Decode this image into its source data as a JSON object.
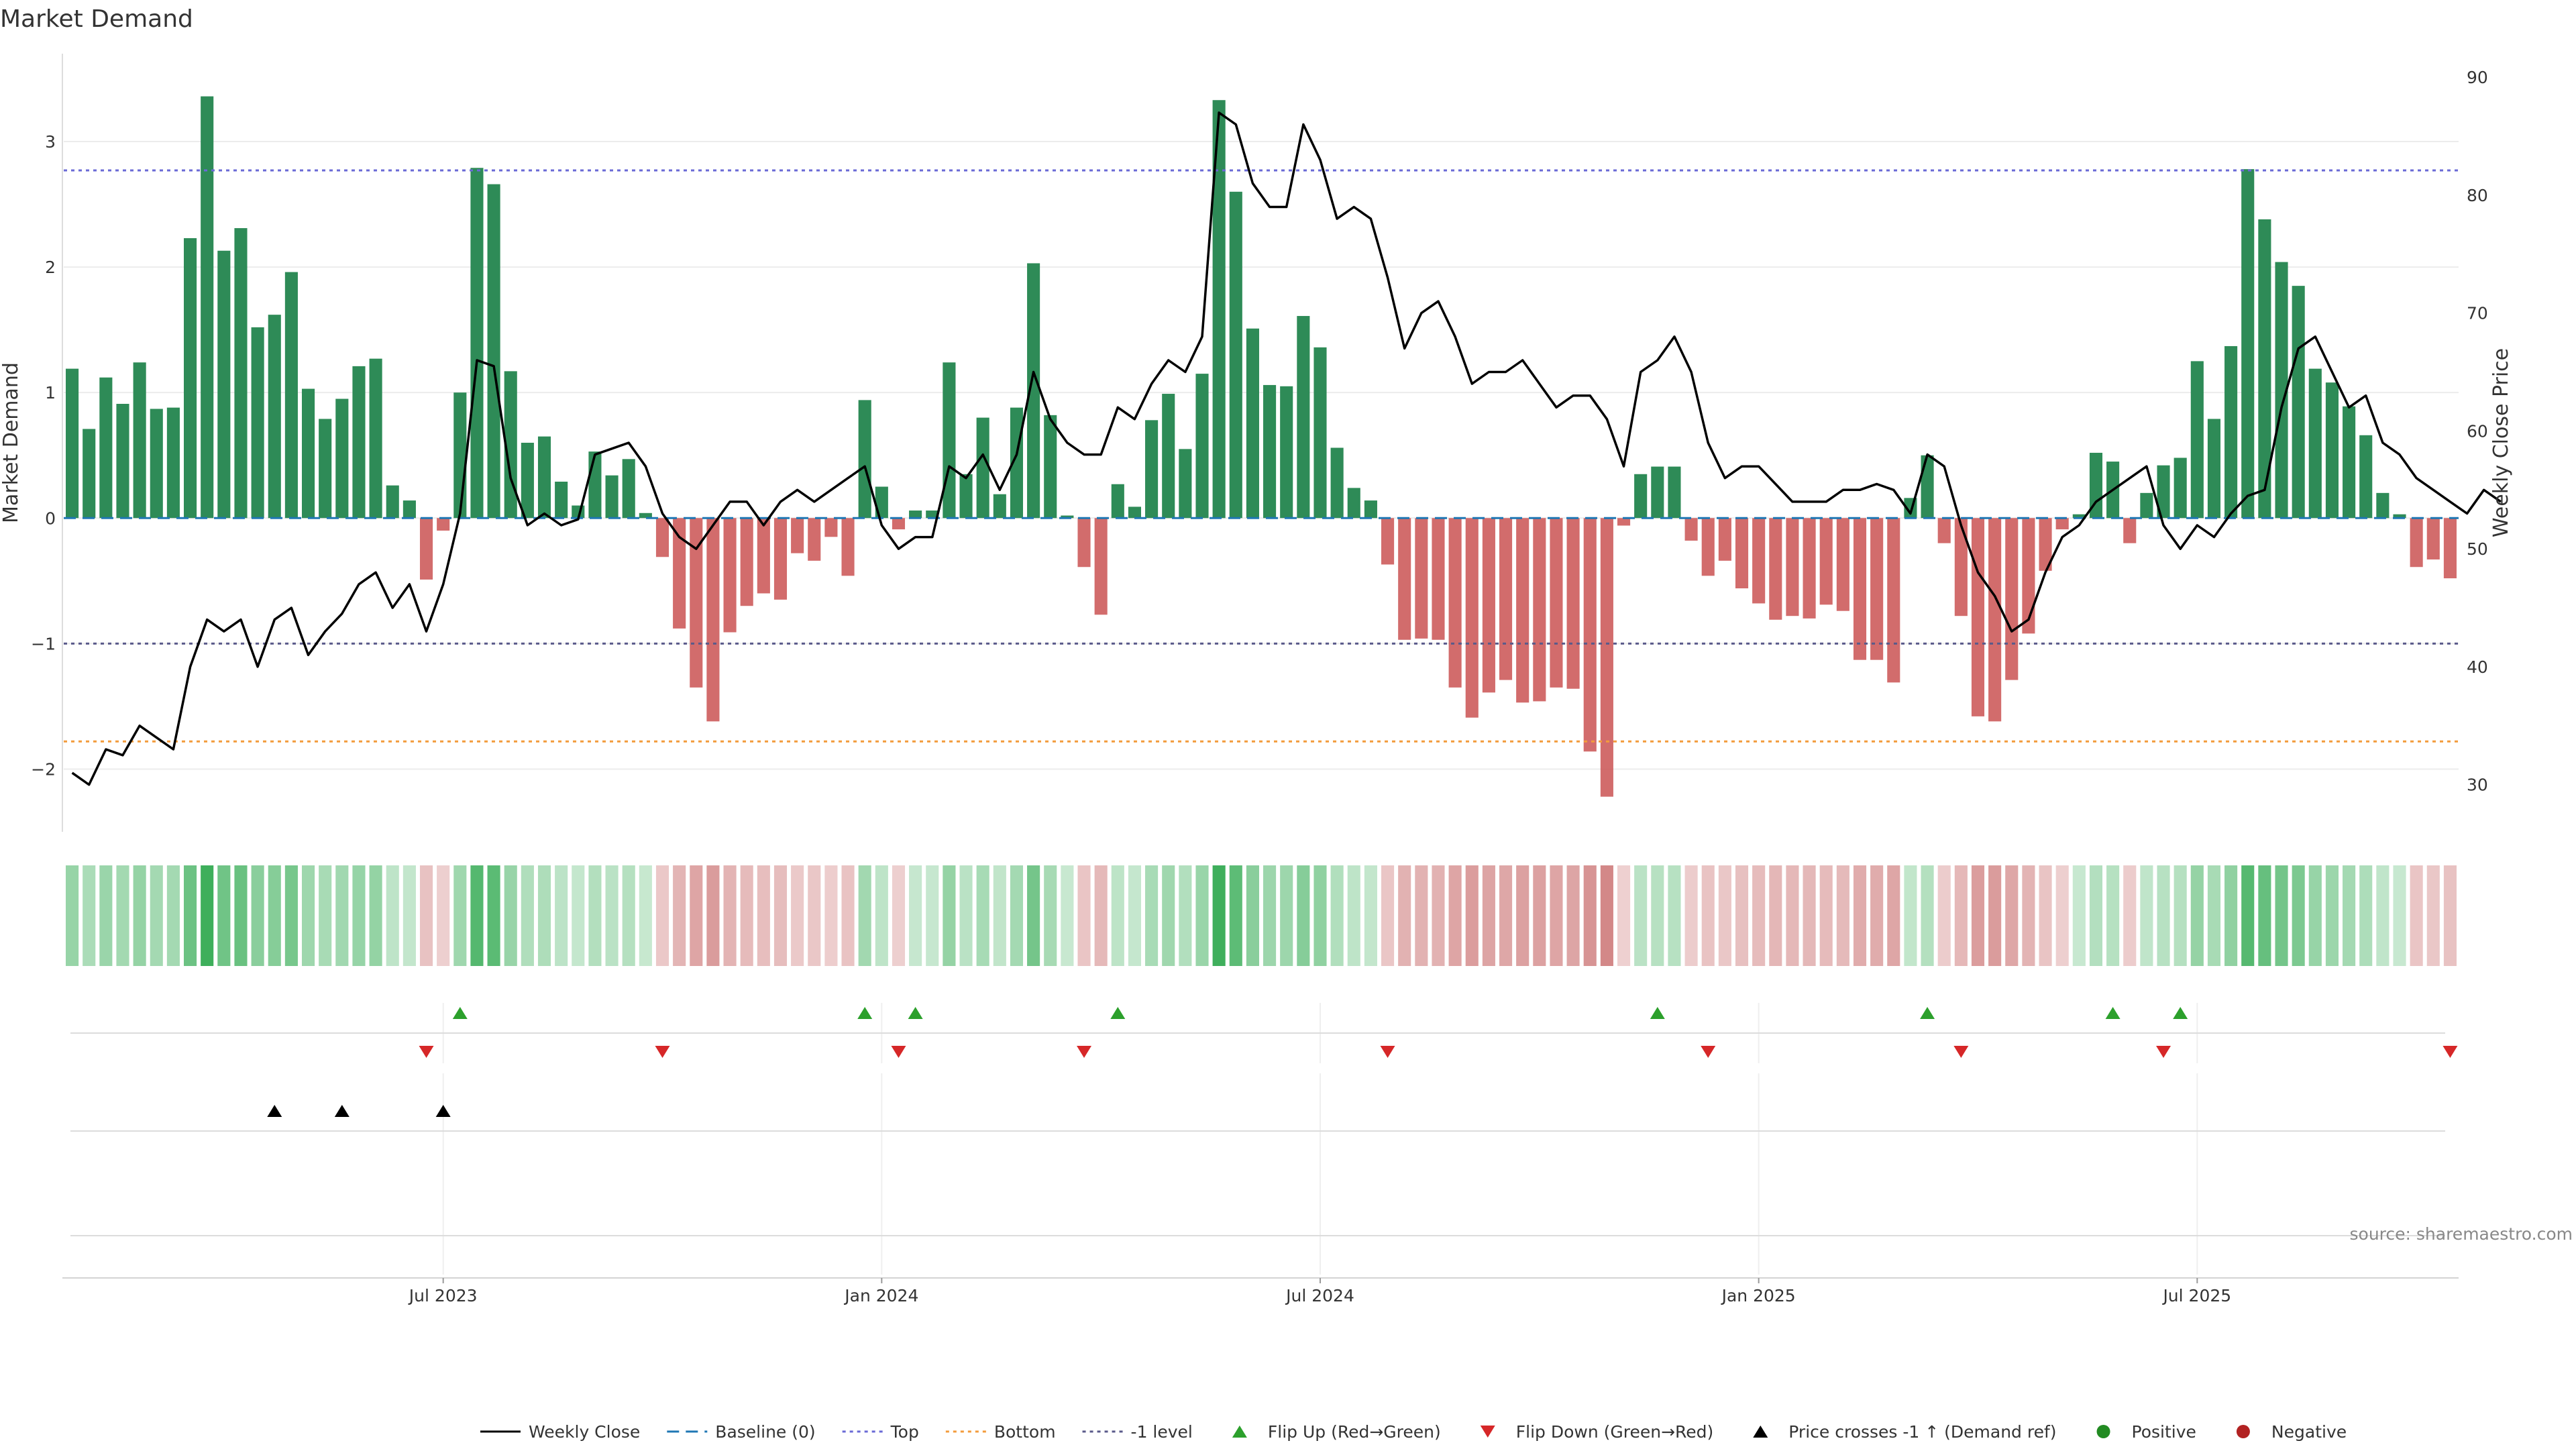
{
  "chart_data": {
    "type": "bar",
    "title": "Market Demand",
    "ylabel_left": "Market Demand",
    "ylabel_right": "Weekly Close Price",
    "ylim_left": [
      -2.5,
      3.7
    ],
    "ylim_right": [
      26,
      92
    ],
    "yticks_left": [
      {
        "v": 3,
        "t": "3"
      },
      {
        "v": 2,
        "t": "2"
      },
      {
        "v": 1,
        "t": "1"
      },
      {
        "v": 0,
        "t": "0"
      },
      {
        "v": -1,
        "t": "−1"
      },
      {
        "v": -2,
        "t": "−2"
      }
    ],
    "yticks_right": [
      {
        "v": 90,
        "t": "90"
      },
      {
        "v": 80,
        "t": "80"
      },
      {
        "v": 70,
        "t": "70"
      },
      {
        "v": 60,
        "t": "60"
      },
      {
        "v": 50,
        "t": "50"
      },
      {
        "v": 40,
        "t": "40"
      },
      {
        "v": 30,
        "t": "30"
      }
    ],
    "xticks": [
      {
        "week": 22,
        "label": "Jul 2023"
      },
      {
        "week": 48,
        "label": "Jan 2024"
      },
      {
        "week": 74,
        "label": "Jul 2024"
      },
      {
        "week": 100,
        "label": "Jan 2025"
      },
      {
        "week": 126,
        "label": "Jul 2025"
      }
    ],
    "reference_lines": {
      "top": 2.77,
      "bottom": -1.78,
      "minus_one": -1,
      "baseline": 0
    },
    "demand": [
      1.19,
      0.71,
      1.12,
      0.91,
      1.24,
      0.87,
      0.88,
      2.23,
      3.36,
      2.13,
      2.31,
      1.52,
      1.62,
      1.96,
      1.03,
      0.79,
      0.95,
      1.21,
      1.27,
      0.26,
      0.14,
      -0.49,
      -0.1,
      1.0,
      2.79,
      2.66,
      1.17,
      0.6,
      0.65,
      0.29,
      0.1,
      0.53,
      0.34,
      0.47,
      0.04,
      -0.31,
      -0.88,
      -1.35,
      -1.62,
      -0.91,
      -0.7,
      -0.6,
      -0.65,
      -0.28,
      -0.34,
      -0.15,
      -0.46,
      0.94,
      0.25,
      -0.09,
      0.06,
      0.06,
      1.24,
      0.35,
      0.8,
      0.19,
      0.88,
      2.03,
      0.82,
      0.02,
      -0.39,
      -0.77,
      0.27,
      0.09,
      0.78,
      0.99,
      0.55,
      1.15,
      3.33,
      2.6,
      1.51,
      1.06,
      1.05,
      1.61,
      1.36,
      0.56,
      0.24,
      0.14,
      -0.37,
      -0.97,
      -0.96,
      -0.97,
      -1.35,
      -1.59,
      -1.39,
      -1.29,
      -1.47,
      -1.46,
      -1.35,
      -1.36,
      -1.86,
      -2.22,
      -0.06,
      0.35,
      0.41,
      0.41,
      -0.18,
      -0.46,
      -0.34,
      -0.56,
      -0.68,
      -0.81,
      -0.78,
      -0.8,
      -0.69,
      -0.74,
      -1.13,
      -1.13,
      -1.31,
      0.16,
      0.5,
      -0.2,
      -0.78,
      -1.58,
      -1.62,
      -1.29,
      -0.92,
      -0.42,
      -0.09,
      0.03,
      0.52,
      0.45,
      -0.2,
      0.2,
      0.42,
      0.48,
      1.25,
      0.79,
      1.37,
      2.78,
      2.38,
      2.04,
      1.85,
      1.19,
      1.08,
      0.89,
      0.66,
      0.2,
      0.03,
      -0.39,
      -0.33,
      -0.48
    ],
    "weekly_close": [
      31,
      30,
      33,
      32.5,
      35,
      34,
      33,
      40,
      44,
      43,
      44,
      40,
      44,
      45,
      41,
      43,
      44.5,
      47,
      48,
      45,
      47,
      43,
      47,
      53,
      66,
      65.5,
      56,
      52,
      53,
      52,
      52.5,
      58,
      58.5,
      59,
      57,
      53,
      51,
      50,
      52,
      54,
      54,
      52,
      54,
      55,
      54,
      55,
      56,
      57,
      52,
      50,
      51,
      51,
      57,
      56,
      58,
      55,
      58,
      65,
      61,
      59,
      58,
      58,
      62,
      61,
      64,
      66,
      65,
      68,
      87,
      86,
      81,
      79,
      79,
      86,
      83,
      78,
      79,
      78,
      73,
      67,
      70,
      71,
      68,
      64,
      65,
      65,
      66,
      64,
      62,
      63,
      63,
      61,
      57,
      65,
      66,
      68,
      65,
      59,
      56,
      57,
      57,
      55.5,
      54,
      54,
      54,
      55,
      55,
      55.5,
      55,
      53,
      58,
      57,
      52,
      48,
      46,
      43,
      44,
      48,
      51,
      52,
      54,
      55,
      56,
      57,
      52,
      50,
      52,
      51,
      53,
      54.5,
      55,
      62,
      67,
      68,
      65,
      62,
      63,
      59,
      58,
      56,
      55,
      54,
      53,
      55,
      54
    ],
    "flip_up_weeks": [
      23,
      47,
      50,
      62,
      94,
      110,
      121,
      125
    ],
    "flip_down_weeks": [
      21,
      35,
      49,
      60,
      78,
      97,
      112,
      124,
      141
    ],
    "price_cross_weeks": [
      12,
      16,
      22
    ],
    "legend": [
      {
        "key": "weekly_close",
        "label": "Weekly Close"
      },
      {
        "key": "baseline",
        "label": "Baseline (0)"
      },
      {
        "key": "top",
        "label": "Top"
      },
      {
        "key": "bottom",
        "label": "Bottom"
      },
      {
        "key": "minus_one",
        "label": "-1 level"
      },
      {
        "key": "flip_up",
        "label": "Flip Up (Red→Green)"
      },
      {
        "key": "flip_down",
        "label": "Flip Down (Green→Red)"
      },
      {
        "key": "price_cross",
        "label": "Price crosses -1 ↑ (Demand ref)"
      },
      {
        "key": "positive",
        "label": "Positive"
      },
      {
        "key": "negative",
        "label": "Negative"
      }
    ],
    "source": "source: sharemaestro.com"
  },
  "colors": {
    "positive": "#2e8b57",
    "negative": "#cd5c5c",
    "price_line": "#000000",
    "top_line": "#6a6ad6",
    "bottom_line": "#f39c3c",
    "minus_one_line": "#5a5a8a",
    "baseline": "#1f77b4",
    "flip_up": "#2ca02c",
    "flip_down": "#d62728",
    "legend_positive": "#228b22",
    "legend_negative": "#b22222"
  }
}
